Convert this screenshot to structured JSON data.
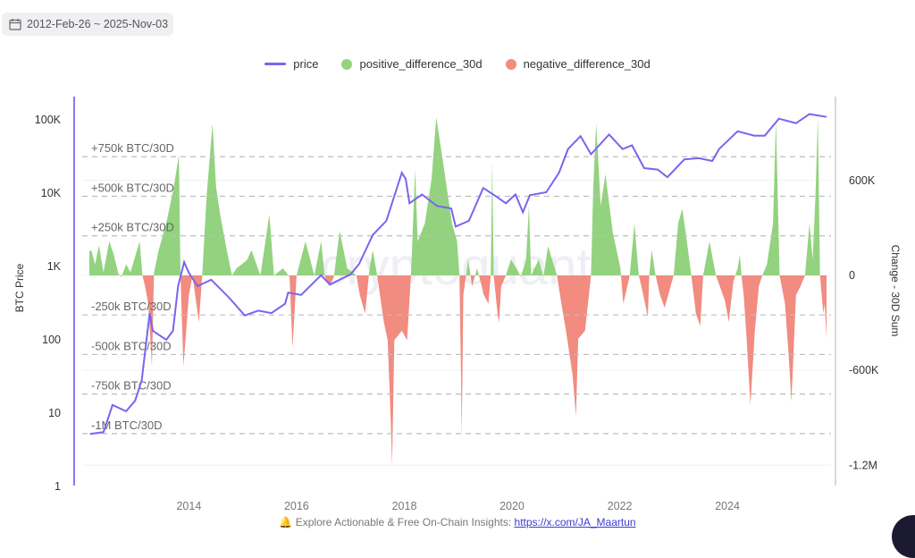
{
  "date_range": {
    "icon": "calendar-icon",
    "label": "2012-Feb-26 ~ 2025-Nov-03"
  },
  "legend": [
    {
      "label": "price",
      "kind": "line",
      "color": "#7b63f0"
    },
    {
      "label": "positive_difference_30d",
      "kind": "dot",
      "color": "#93d37f"
    },
    {
      "label": "negative_difference_30d",
      "kind": "dot",
      "color": "#f28b80"
    }
  ],
  "footer": {
    "icon": "bell-icon",
    "text": "Explore Actionable & Free On-Chain Insights: ",
    "link": "https://x.com/JA_Maartun"
  },
  "watermark": "cryptoquant",
  "chart_data": {
    "type": "line+area",
    "xrange": [
      "2012-02-26",
      "2025-11-03"
    ],
    "x_ticks": [
      "2014",
      "2016",
      "2018",
      "2020",
      "2022",
      "2024"
    ],
    "y_left": {
      "label": "BTC Price",
      "scale": "log",
      "ticks": [
        "1",
        "10",
        "100",
        "1K",
        "10K",
        "100K"
      ],
      "tick_values": [
        1,
        10,
        100,
        1000,
        10000,
        100000
      ],
      "range": [
        1,
        208000
      ]
    },
    "y_right": {
      "label": "Change - 30D Sum",
      "ticks": [
        "600K",
        "0",
        "-600K",
        "-1.2M"
      ],
      "tick_values": [
        600000,
        0,
        -600000,
        -1200000
      ],
      "range": [
        -1334000,
        1130000
      ]
    },
    "thresholds": [
      {
        "value": 750000,
        "label": "+750k BTC/30D"
      },
      {
        "value": 500000,
        "label": "+500k BTC/30D"
      },
      {
        "value": 250000,
        "label": "+250k BTC/30D"
      },
      {
        "value": -250000,
        "label": "-250k BTC/30D"
      },
      {
        "value": -500000,
        "label": "-500k BTC/30D"
      },
      {
        "value": -750000,
        "label": "-750k BTC/30D"
      },
      {
        "value": -1000000,
        "label": "-1M BTC/30D"
      }
    ],
    "price": [
      [
        "2012-03-01",
        5.2
      ],
      [
        "2012-06-01",
        5.5
      ],
      [
        "2012-08-01",
        12.9
      ],
      [
        "2012-11-01",
        10.6
      ],
      [
        "2013-01-01",
        14.8
      ],
      [
        "2013-02-15",
        28
      ],
      [
        "2013-04-10",
        232
      ],
      [
        "2013-05-01",
        133
      ],
      [
        "2013-08-01",
        100
      ],
      [
        "2013-09-15",
        133
      ],
      [
        "2013-10-20",
        540
      ],
      [
        "2013-11-30",
        1150
      ],
      [
        "2014-01-01",
        820
      ],
      [
        "2014-03-01",
        540
      ],
      [
        "2014-06-01",
        660
      ],
      [
        "2014-10-01",
        375
      ],
      [
        "2015-01-15",
        215
      ],
      [
        "2015-04-15",
        250
      ],
      [
        "2015-07-15",
        232
      ],
      [
        "2015-10-15",
        310
      ],
      [
        "2015-11-05",
        440
      ],
      [
        "2016-02-01",
        410
      ],
      [
        "2016-06-15",
        760
      ],
      [
        "2016-08-15",
        570
      ],
      [
        "2017-01-01",
        780
      ],
      [
        "2017-03-01",
        1090
      ],
      [
        "2017-06-01",
        2700
      ],
      [
        "2017-09-01",
        4200
      ],
      [
        "2017-12-15",
        19000
      ],
      [
        "2018-01-10",
        15700
      ],
      [
        "2018-02-05",
        7300
      ],
      [
        "2018-05-01",
        9600
      ],
      [
        "2018-08-10",
        6700
      ],
      [
        "2018-11-15",
        6200
      ],
      [
        "2018-12-15",
        3500
      ],
      [
        "2019-03-15",
        4200
      ],
      [
        "2019-06-20",
        11800
      ],
      [
        "2019-09-20",
        8900
      ],
      [
        "2019-11-20",
        7300
      ],
      [
        "2020-01-25",
        9600
      ],
      [
        "2020-03-15",
        5500
      ],
      [
        "2020-05-01",
        9400
      ],
      [
        "2020-08-20",
        10300
      ],
      [
        "2020-11-15",
        19000
      ],
      [
        "2021-01-15",
        40000
      ],
      [
        "2021-04-10",
        60000
      ],
      [
        "2021-06-20",
        34000
      ],
      [
        "2021-10-20",
        63000
      ],
      [
        "2022-01-20",
        40000
      ],
      [
        "2022-03-25",
        45000
      ],
      [
        "2022-06-15",
        22000
      ],
      [
        "2022-09-15",
        21000
      ],
      [
        "2022-11-20",
        16500
      ],
      [
        "2023-03-15",
        29000
      ],
      [
        "2023-06-20",
        30000
      ],
      [
        "2023-09-20",
        27500
      ],
      [
        "2023-11-05",
        40000
      ],
      [
        "2024-03-10",
        70000
      ],
      [
        "2024-07-01",
        61000
      ],
      [
        "2024-09-10",
        61000
      ],
      [
        "2024-12-15",
        104000
      ],
      [
        "2025-04-10",
        90000
      ],
      [
        "2025-07-10",
        120000
      ],
      [
        "2025-11-03",
        110000
      ]
    ],
    "difference_30d": [
      [
        "2012-02-26",
        150000
      ],
      [
        "2012-03-10",
        160000
      ],
      [
        "2012-04-05",
        70000
      ],
      [
        "2012-05-01",
        190000
      ],
      [
        "2012-06-01",
        20000
      ],
      [
        "2012-07-10",
        215000
      ],
      [
        "2012-08-10",
        130000
      ],
      [
        "2012-09-10",
        10000
      ],
      [
        "2012-10-01",
        -10000
      ],
      [
        "2012-11-01",
        70000
      ],
      [
        "2012-12-01",
        20000
      ],
      [
        "2013-01-05",
        130000
      ],
      [
        "2013-02-01",
        215000
      ],
      [
        "2013-02-20",
        0
      ],
      [
        "2013-03-10",
        -70000
      ],
      [
        "2013-04-01",
        -180000
      ],
      [
        "2013-04-25",
        -575000
      ],
      [
        "2013-05-10",
        20000
      ],
      [
        "2013-06-10",
        160000
      ],
      [
        "2013-08-01",
        330000
      ],
      [
        "2013-09-20",
        555000
      ],
      [
        "2013-10-25",
        760000
      ],
      [
        "2013-11-05",
        0
      ],
      [
        "2013-11-25",
        -575000
      ],
      [
        "2014-01-01",
        -125000
      ],
      [
        "2014-01-25",
        0
      ],
      [
        "2014-03-10",
        -295000
      ],
      [
        "2014-04-01",
        0
      ],
      [
        "2014-05-01",
        500000
      ],
      [
        "2014-06-10",
        960000
      ],
      [
        "2014-07-05",
        555000
      ],
      [
        "2014-08-01",
        385000
      ],
      [
        "2014-09-15",
        160000
      ],
      [
        "2014-10-20",
        0
      ],
      [
        "2014-11-20",
        45000
      ],
      [
        "2015-01-01",
        75000
      ],
      [
        "2015-02-01",
        100000
      ],
      [
        "2015-03-01",
        160000
      ],
      [
        "2015-05-01",
        0
      ],
      [
        "2015-07-01",
        385000
      ],
      [
        "2015-08-01",
        0
      ],
      [
        "2015-10-01",
        45000
      ],
      [
        "2015-11-15",
        -10000
      ],
      [
        "2015-12-05",
        -460000
      ],
      [
        "2016-01-01",
        0
      ],
      [
        "2016-03-01",
        215000
      ],
      [
        "2016-05-01",
        0
      ],
      [
        "2016-06-15",
        215000
      ],
      [
        "2016-07-10",
        0
      ],
      [
        "2016-08-10",
        -70000
      ],
      [
        "2016-09-10",
        -10000
      ],
      [
        "2016-10-20",
        280000
      ],
      [
        "2016-12-10",
        45000
      ],
      [
        "2017-02-10",
        0
      ],
      [
        "2017-03-05",
        -125000
      ],
      [
        "2017-04-10",
        -240000
      ],
      [
        "2017-05-10",
        45000
      ],
      [
        "2017-06-01",
        160000
      ],
      [
        "2017-07-01",
        0
      ],
      [
        "2017-08-15",
        -295000
      ],
      [
        "2017-09-10",
        -410000
      ],
      [
        "2017-10-01",
        -920000
      ],
      [
        "2017-10-10",
        -1200000
      ],
      [
        "2017-10-25",
        -410000
      ],
      [
        "2017-12-15",
        -350000
      ],
      [
        "2018-01-20",
        -410000
      ],
      [
        "2018-02-15",
        0
      ],
      [
        "2018-03-15",
        670000
      ],
      [
        "2018-04-01",
        215000
      ],
      [
        "2018-05-20",
        330000
      ],
      [
        "2018-07-05",
        610000
      ],
      [
        "2018-08-05",
        1000000
      ],
      [
        "2018-09-20",
        720000
      ],
      [
        "2018-11-20",
        330000
      ],
      [
        "2018-12-25",
        215000
      ],
      [
        "2019-01-10",
        0
      ],
      [
        "2019-01-20",
        -630000
      ],
      [
        "2019-01-25",
        -1030000
      ],
      [
        "2019-02-05",
        -125000
      ],
      [
        "2019-03-10",
        100000
      ],
      [
        "2019-04-05",
        -70000
      ],
      [
        "2019-05-10",
        45000
      ],
      [
        "2019-06-25",
        -125000
      ],
      [
        "2019-07-25",
        -180000
      ],
      [
        "2019-08-10",
        0
      ],
      [
        "2019-08-20",
        720000
      ],
      [
        "2019-08-30",
        0
      ],
      [
        "2019-09-25",
        -240000
      ],
      [
        "2019-10-05",
        -300000
      ],
      [
        "2019-10-20",
        -70000
      ],
      [
        "2019-11-20",
        0
      ],
      [
        "2019-12-25",
        100000
      ],
      [
        "2020-02-01",
        45000
      ],
      [
        "2020-03-01",
        -10000
      ],
      [
        "2020-04-05",
        100000
      ],
      [
        "2020-04-25",
        440000
      ],
      [
        "2020-05-10",
        0
      ],
      [
        "2020-06-01",
        45000
      ],
      [
        "2020-07-01",
        100000
      ],
      [
        "2020-08-01",
        -10000
      ],
      [
        "2020-09-01",
        185000
      ],
      [
        "2020-11-01",
        0
      ],
      [
        "2020-12-01",
        -180000
      ],
      [
        "2021-01-01",
        -350000
      ],
      [
        "2021-02-15",
        -630000
      ],
      [
        "2021-03-10",
        -890000
      ],
      [
        "2021-03-25",
        -400000
      ],
      [
        "2021-05-10",
        -350000
      ],
      [
        "2021-06-20",
        0
      ],
      [
        "2021-07-05",
        555000
      ],
      [
        "2021-07-25",
        960000
      ],
      [
        "2021-08-25",
        440000
      ],
      [
        "2021-09-25",
        640000
      ],
      [
        "2021-11-15",
        270000
      ],
      [
        "2022-01-05",
        45000
      ],
      [
        "2022-01-25",
        -180000
      ],
      [
        "2022-03-10",
        0
      ],
      [
        "2022-04-10",
        330000
      ],
      [
        "2022-05-10",
        0
      ],
      [
        "2022-06-10",
        -125000
      ],
      [
        "2022-07-10",
        -265000
      ],
      [
        "2022-07-20",
        0
      ],
      [
        "2022-08-05",
        160000
      ],
      [
        "2022-09-01",
        0
      ],
      [
        "2022-10-01",
        -125000
      ],
      [
        "2022-11-01",
        -205000
      ],
      [
        "2023-01-01",
        0
      ],
      [
        "2023-02-01",
        330000
      ],
      [
        "2023-03-01",
        420000
      ],
      [
        "2023-04-01",
        215000
      ],
      [
        "2023-05-01",
        0
      ],
      [
        "2023-06-01",
        -240000
      ],
      [
        "2023-07-01",
        -320000
      ],
      [
        "2023-07-20",
        0
      ],
      [
        "2023-09-01",
        215000
      ],
      [
        "2023-10-15",
        0
      ],
      [
        "2023-12-15",
        -160000
      ],
      [
        "2024-01-10",
        -295000
      ],
      [
        "2024-02-10",
        -40000
      ],
      [
        "2024-03-10",
        45000
      ],
      [
        "2024-03-25",
        130000
      ],
      [
        "2024-04-05",
        0
      ],
      [
        "2024-04-20",
        -125000
      ],
      [
        "2024-05-10",
        -400000
      ],
      [
        "2024-06-05",
        -820000
      ],
      [
        "2024-07-05",
        -350000
      ],
      [
        "2024-08-01",
        -70000
      ],
      [
        "2024-08-25",
        0
      ],
      [
        "2024-09-25",
        70000
      ],
      [
        "2024-11-05",
        330000
      ],
      [
        "2024-11-25",
        980000
      ],
      [
        "2024-12-20",
        0
      ],
      [
        "2025-01-25",
        -180000
      ],
      [
        "2025-02-20",
        -520000
      ],
      [
        "2025-03-10",
        -800000
      ],
      [
        "2025-04-10",
        -125000
      ],
      [
        "2025-05-10",
        -70000
      ],
      [
        "2025-06-10",
        0
      ],
      [
        "2025-07-10",
        330000
      ],
      [
        "2025-08-01",
        100000
      ],
      [
        "2025-08-20",
        500000
      ],
      [
        "2025-09-05",
        1000000
      ],
      [
        "2025-09-20",
        0
      ],
      [
        "2025-10-01",
        -125000
      ],
      [
        "2025-10-12",
        -240000
      ],
      [
        "2025-10-22",
        -180000
      ],
      [
        "2025-11-03",
        -400000
      ]
    ],
    "grid": true,
    "legend_position": "top"
  }
}
